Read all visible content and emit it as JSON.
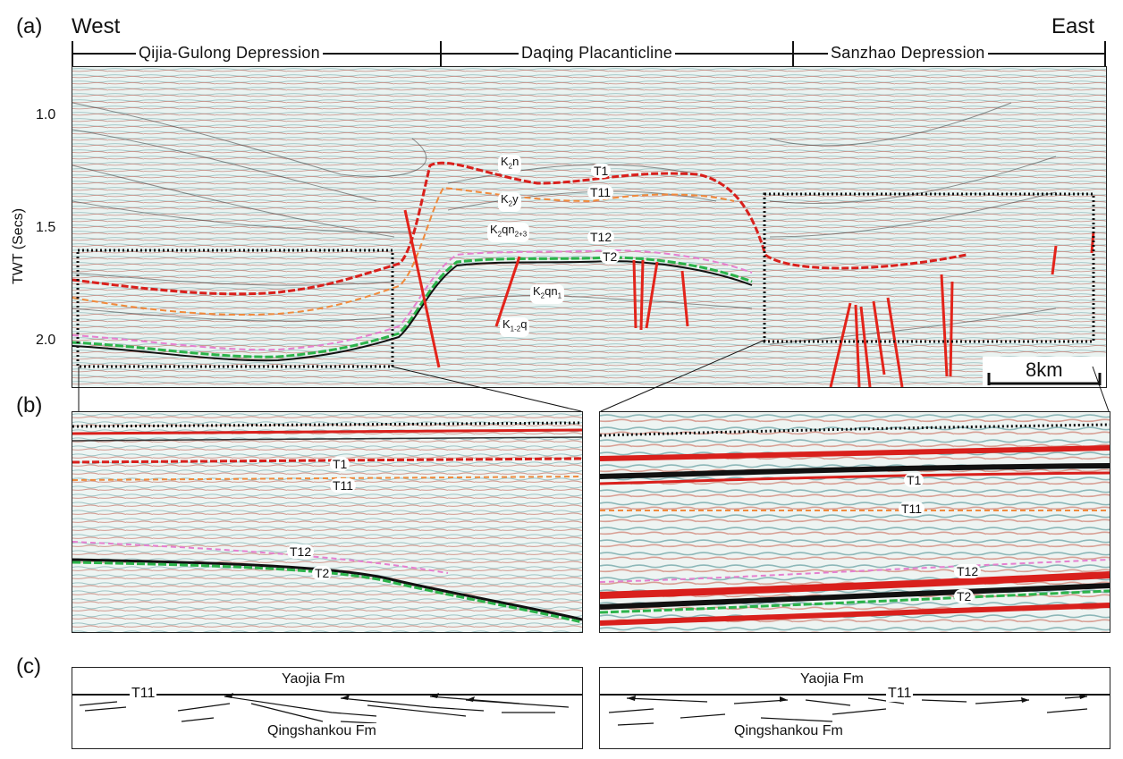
{
  "panel_a": {
    "label": "(a)",
    "west": "West",
    "east": "East",
    "regions": [
      "Qijia-Gulong Depression",
      "Daqing Placanticline",
      "Sanzhao Depression"
    ],
    "y_axis_label": "TWT (Secs)",
    "y_ticks": [
      "1.0",
      "1.5",
      "2.0"
    ],
    "horizons": [
      "T1",
      "T11",
      "T12",
      "T2"
    ],
    "units": [
      {
        "base": "K",
        "sub": "2",
        "rest": "n",
        "rest_sub": ""
      },
      {
        "base": "K",
        "sub": "2",
        "rest": "y",
        "rest_sub": ""
      },
      {
        "base": "K",
        "sub": "2",
        "rest": "qn",
        "rest_sub": "2+3"
      },
      {
        "base": "K",
        "sub": "2",
        "rest": "qn",
        "rest_sub": "1"
      },
      {
        "base": "K",
        "sub": "1-2",
        "rest": "q",
        "rest_sub": ""
      }
    ],
    "scale": "8km"
  },
  "panel_b": {
    "label": "(b)",
    "left_horizons": [
      "T1",
      "T11",
      "T12",
      "T2"
    ],
    "right_horizons": [
      "T1",
      "T11",
      "T12",
      "T2"
    ]
  },
  "panel_c": {
    "label": "(c)",
    "left": {
      "top_fm": "Yaojia Fm",
      "bottom_fm": "Qingshankou Fm",
      "horizon": "T11"
    },
    "right": {
      "top_fm": "Yaojia Fm",
      "bottom_fm": "Qingshankou Fm",
      "horizon": "T11"
    }
  },
  "colors": {
    "T1": "#d9201c",
    "T11": "#f08a3c",
    "T12": "#e580d0",
    "T2": "#2bb34a",
    "fault": "#e3241b",
    "box": "#111111"
  }
}
